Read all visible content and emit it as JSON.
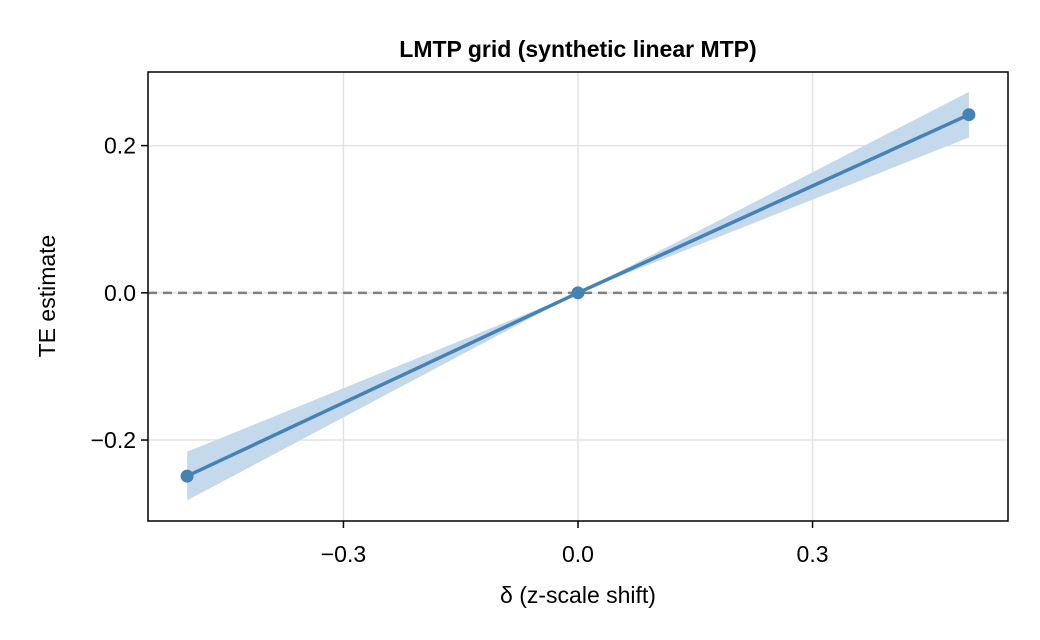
{
  "chart_data": {
    "type": "line",
    "title": "LMTP grid (synthetic linear MTP)",
    "xlabel": "δ (z-scale shift)",
    "ylabel": "TE estimate",
    "xlim": [
      -0.55,
      0.55
    ],
    "ylim": [
      -0.31,
      0.3
    ],
    "xticks": [
      {
        "value": -0.3,
        "label": "−0.3"
      },
      {
        "value": 0.0,
        "label": "0.0"
      },
      {
        "value": 0.3,
        "label": "0.3"
      }
    ],
    "yticks": [
      {
        "value": -0.2,
        "label": "−0.2"
      },
      {
        "value": 0.0,
        "label": "0.0"
      },
      {
        "value": 0.2,
        "label": "0.2"
      }
    ],
    "grid": true,
    "reference_line": {
      "y": 0.0,
      "style": "dashed",
      "color": "#808080"
    },
    "series": [
      {
        "x": [
          -0.5,
          0.0,
          0.5
        ],
        "y": [
          -0.249,
          0.0,
          0.242
        ],
        "ci_lower": [
          -0.282,
          0.0,
          0.211
        ],
        "ci_upper": [
          -0.216,
          0.0,
          0.273
        ],
        "line_color": "#4682b4",
        "band_color": "#c5d9ec"
      }
    ]
  }
}
